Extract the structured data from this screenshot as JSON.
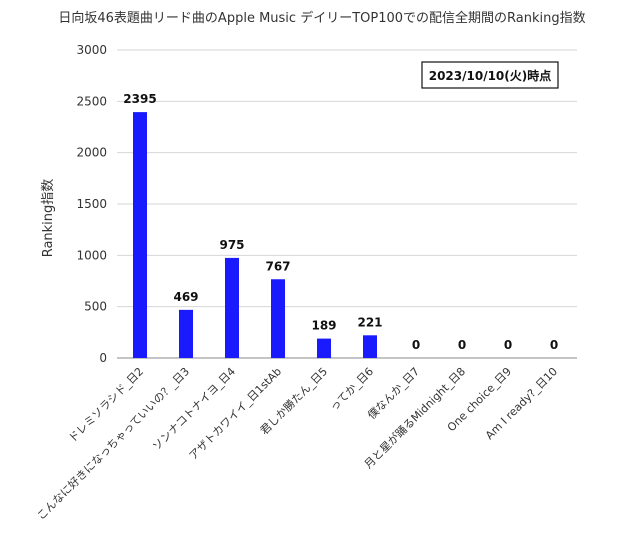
{
  "chart_data": {
    "type": "bar",
    "title": "日向坂46表題曲リード曲のApple Music デイリーTOP100での配信全期間のRanking指数",
    "ylabel": "Ranking指数",
    "xlabel": "",
    "annotation": "2023/10/10(火)時点",
    "ylim": [
      0,
      3000
    ],
    "yticks": [
      "0",
      "500",
      "1000",
      "1500",
      "2000",
      "2500",
      "3000"
    ],
    "grid": true,
    "bar_color": "#1a1aff",
    "categories": [
      "ドレミソラシド_日2",
      "こんなに好きになっちゃっていいの？_日3",
      "ソンナコトナイヨ_日4",
      "アザトカワイイ_日1stAb",
      "君しか勝たん_日5",
      "ってか_日6",
      "僕なんか_日7",
      "月と星が踊るMidnight_日8",
      "One choice_日9",
      "Am I ready?_日10"
    ],
    "values": [
      2395,
      469,
      975,
      767,
      189,
      221,
      0,
      0,
      0,
      0
    ],
    "value_labels": [
      "2395",
      "469",
      "975",
      "767",
      "189",
      "221",
      "0",
      "0",
      "0",
      "0"
    ]
  }
}
